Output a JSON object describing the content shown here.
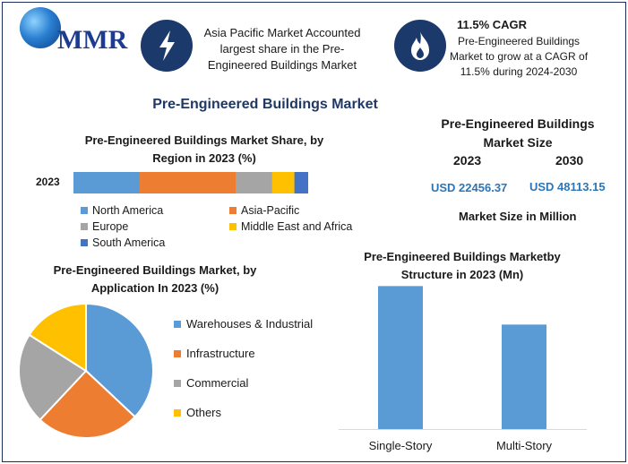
{
  "header": {
    "logo_text": "MMR",
    "highlight1": "Asia Pacific Market Accounted largest share in the Pre-Engineered Buildings Market",
    "highlight2_title": "11.5% CAGR",
    "highlight2_text": "Pre-Engineered Buildings Market to grow at a CAGR of 11.5% during 2024-2030"
  },
  "main_title": "Pre-Engineered Buildings Market",
  "market_size": {
    "title": "Pre-Engineered Buildings Market Size",
    "year1": "2023",
    "year2": "2030",
    "value1": "USD 22456.37",
    "value2": "USD 48113.15",
    "note": "Market Size in Million"
  },
  "colors": {
    "blue": "#5b9bd5",
    "orange": "#ed7d31",
    "gray": "#a5a5a5",
    "yellow": "#ffc000",
    "darkblue": "#4472c4",
    "navy": "#1b3a6b"
  },
  "icons": {
    "highlight1": "lightning-icon",
    "highlight2": "flame-icon"
  },
  "chart_data": [
    {
      "type": "bar",
      "orientation": "horizontal-stacked",
      "title": "Pre-Engineered Buildings Market Share, by Region in 2023 (%)",
      "categories": [
        "2023"
      ],
      "series": [
        {
          "name": "North America",
          "values": [
            24
          ],
          "color": "#5b9bd5"
        },
        {
          "name": "Asia-Pacific",
          "values": [
            35
          ],
          "color": "#ed7d31"
        },
        {
          "name": "Europe",
          "values": [
            13
          ],
          "color": "#a5a5a5"
        },
        {
          "name": "Middle East and Africa",
          "values": [
            8
          ],
          "color": "#ffc000"
        },
        {
          "name": "South America",
          "values": [
            5
          ],
          "color": "#4472c4"
        }
      ],
      "legend": "bottom"
    },
    {
      "type": "pie",
      "title": "Pre-Engineered Buildings Market, by Application In 2023 (%)",
      "labels": [
        "Warehouses & Industrial",
        "Infrastructure",
        "Commercial",
        "Others"
      ],
      "values": [
        37,
        25,
        22,
        16
      ],
      "colors": [
        "#5b9bd5",
        "#ed7d31",
        "#a5a5a5",
        "#ffc000"
      ],
      "legend": "right"
    },
    {
      "type": "bar",
      "title": "Pre-Engineered Buildings Marketby Structure in 2023 (Mn)",
      "categories": [
        "Single-Story",
        "Multi-Story"
      ],
      "values": [
        13000,
        9500
      ],
      "color": "#5b9bd5",
      "ylim": [
        0,
        13600
      ]
    }
  ]
}
